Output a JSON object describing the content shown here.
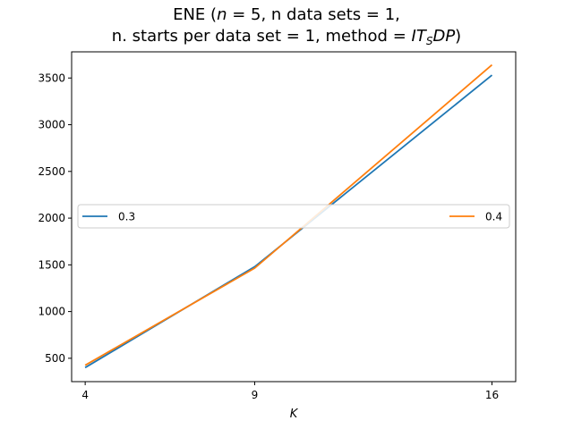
{
  "chart_data": {
    "type": "line",
    "title_line1": {
      "prefix": "ENE (",
      "n_var": "n",
      "n_eq": " = 5, n data sets = 1,"
    },
    "title_line2": {
      "prefix": "n. starts per data set = 1, method = ",
      "method_a": "IT",
      "method_sub": "S",
      "method_b": "DP",
      "suffix": ")"
    },
    "xlabel": "K",
    "ylabel": "",
    "x": [
      4,
      9,
      16
    ],
    "x_tick_labels": [
      "4",
      "9",
      "16"
    ],
    "y_ticks": [
      500,
      1000,
      1500,
      2000,
      2500,
      3000,
      3500
    ],
    "xlim": [
      3.6,
      16.7
    ],
    "ylim": [
      250,
      3780
    ],
    "grid": false,
    "legend_placement": "center, spanning width",
    "series": [
      {
        "name": "0.3",
        "color": "#1f77b4",
        "values": [
          400,
          1480,
          3530
        ]
      },
      {
        "name": "0.4",
        "color": "#ff7f0e",
        "values": [
          425,
          1465,
          3640
        ]
      }
    ]
  }
}
